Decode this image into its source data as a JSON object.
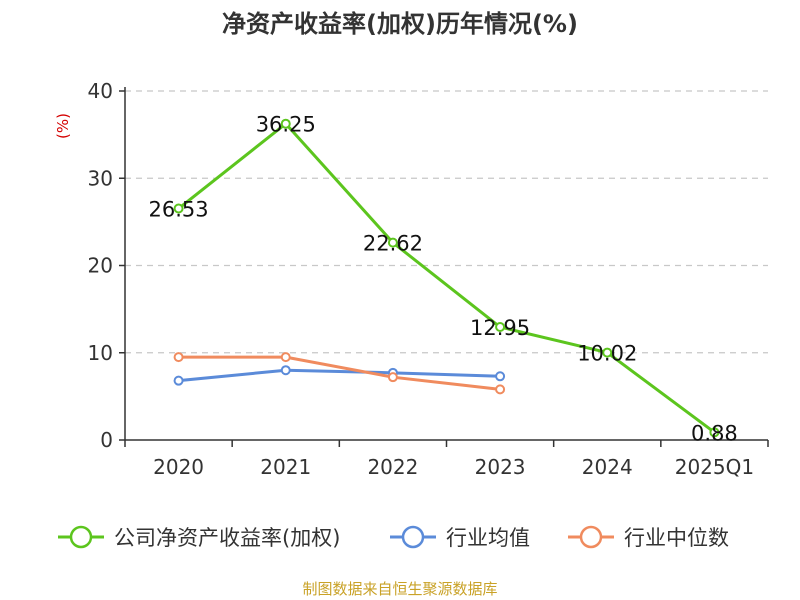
{
  "chart_data": {
    "type": "line",
    "title": "净资产收益率(加权)历年情况(%)",
    "ylabel": "(%)",
    "categories": [
      "2020",
      "2021",
      "2022",
      "2023",
      "2024",
      "2025Q1"
    ],
    "ylim": [
      0,
      40
    ],
    "yticks": [
      "0",
      "10",
      "20",
      "30",
      "40"
    ],
    "grid": true,
    "legend_position": "bottom",
    "series": [
      {
        "name": "公司净资产收益率(加权)",
        "color": "#5cc51e",
        "values": [
          26.53,
          36.25,
          22.62,
          12.95,
          10.02,
          0.88
        ],
        "labels": [
          "26.53",
          "36.25",
          "22.62",
          "12.95",
          "10.02",
          "0.88"
        ]
      },
      {
        "name": "行业均值",
        "color": "#5b8bd9",
        "values": [
          6.8,
          8.0,
          7.7,
          7.3,
          null,
          null
        ]
      },
      {
        "name": "行业中位数",
        "color": "#f08b5e",
        "values": [
          9.5,
          9.5,
          7.2,
          5.8,
          null,
          null
        ]
      }
    ]
  },
  "footer": {
    "source": "制图数据来自恒生聚源数据库"
  }
}
